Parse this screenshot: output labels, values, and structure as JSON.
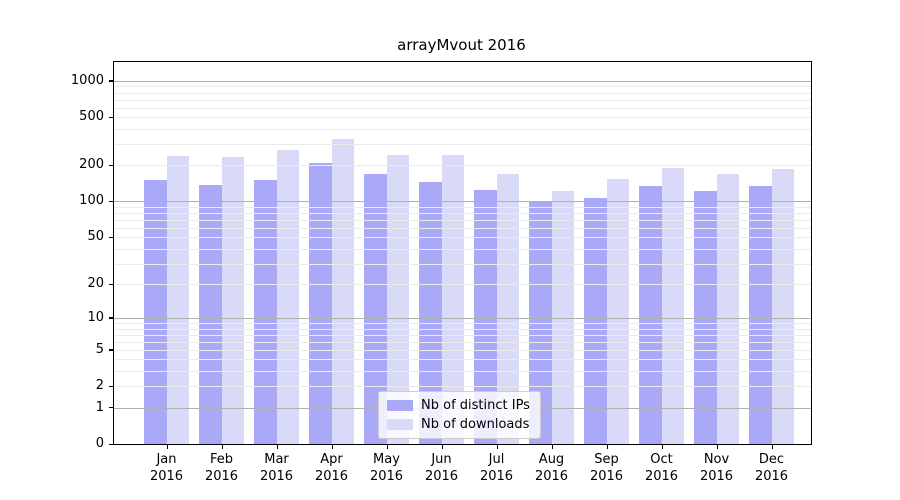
{
  "chart_data": {
    "type": "bar",
    "title": "arrayMvout 2016",
    "categories": [
      "Jan 2016",
      "Feb 2016",
      "Mar 2016",
      "Apr 2016",
      "May 2016",
      "Jun 2016",
      "Jul 2016",
      "Aug 2016",
      "Sep 2016",
      "Oct 2016",
      "Nov 2016",
      "Dec 2016"
    ],
    "series": [
      {
        "name": "Nb of distinct IPs",
        "color": "#a9a9f7",
        "values": [
          150,
          137,
          150,
          210,
          170,
          145,
          125,
          100,
          107,
          135,
          122,
          135
        ]
      },
      {
        "name": "Nb of downloads",
        "color": "#d9d9f8",
        "values": [
          240,
          235,
          270,
          330,
          245,
          245,
          170,
          122,
          155,
          190,
          170,
          185
        ]
      }
    ],
    "ylabel": "",
    "xlabel": "",
    "yscale": "log10(1+value)",
    "ylim": [
      0,
      1434
    ],
    "yticks": [
      1000,
      500,
      200,
      100,
      50,
      20,
      10,
      5,
      2,
      1,
      0
    ],
    "minor_gridlines": [
      2,
      3,
      4,
      5,
      6,
      7,
      8,
      9,
      20,
      30,
      40,
      50,
      60,
      70,
      80,
      90,
      200,
      300,
      400,
      500,
      600,
      700,
      800,
      900
    ],
    "major_gridlines": [
      1,
      10,
      100,
      1000
    ],
    "grid": true,
    "legend_position": "bottom-center",
    "colors": {
      "bar_dark": "#a9a9f7",
      "bar_light": "#d9d9f8",
      "grid_major": "#b0b0b0",
      "grid_minor": "#ebebeb",
      "spine": "#000000",
      "legend_border": "#cccccc"
    }
  }
}
